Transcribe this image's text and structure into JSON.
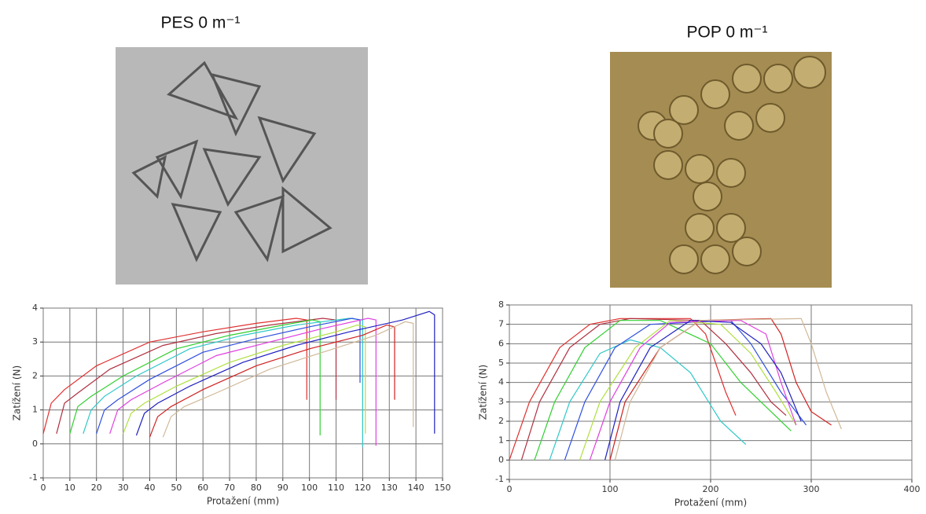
{
  "chart_data": [
    {
      "type": "line",
      "title": "PES 0 m⁻¹",
      "x_label": "Protažení (mm)",
      "y_label": "Zatížení (N)",
      "xlim": [
        0,
        150
      ],
      "xticks": [
        0,
        10,
        20,
        30,
        40,
        50,
        60,
        70,
        80,
        90,
        100,
        110,
        120,
        130,
        140,
        150
      ],
      "ylim": [
        -1,
        4
      ],
      "yticks": [
        -1,
        0,
        1,
        2,
        3,
        4
      ],
      "grid": true,
      "series": [
        {
          "color": "#e03030",
          "x": [
            0,
            3,
            8,
            20,
            40,
            60,
            80,
            95,
            99,
            99
          ],
          "values": [
            0.3,
            1.2,
            1.6,
            2.3,
            3.0,
            3.3,
            3.55,
            3.7,
            3.65,
            1.3
          ]
        },
        {
          "color": "#b03040",
          "x": [
            5,
            8,
            13,
            25,
            45,
            65,
            85,
            105,
            110,
            110
          ],
          "values": [
            0.3,
            1.2,
            1.5,
            2.2,
            2.9,
            3.25,
            3.5,
            3.7,
            3.65,
            1.3
          ]
        },
        {
          "color": "#30d030",
          "x": [
            10,
            13,
            18,
            30,
            50,
            70,
            90,
            101,
            104,
            104
          ],
          "values": [
            0.3,
            1.1,
            1.4,
            2.0,
            2.8,
            3.2,
            3.5,
            3.65,
            3.6,
            0.25
          ]
        },
        {
          "color": "#30c8c8",
          "x": [
            15,
            18,
            23,
            35,
            55,
            75,
            95,
            115,
            120,
            120
          ],
          "values": [
            0.3,
            1.0,
            1.4,
            2.0,
            2.8,
            3.2,
            3.5,
            3.7,
            3.65,
            -0.1
          ]
        },
        {
          "color": "#3050e0",
          "x": [
            20,
            23,
            28,
            40,
            60,
            80,
            100,
            116,
            119,
            119
          ],
          "values": [
            0.3,
            1.0,
            1.3,
            1.9,
            2.7,
            3.1,
            3.45,
            3.7,
            3.65,
            1.8
          ]
        },
        {
          "color": "#e040e0",
          "x": [
            25,
            28,
            33,
            45,
            65,
            85,
            105,
            122,
            125,
            125
          ],
          "values": [
            0.3,
            1.0,
            1.3,
            1.8,
            2.6,
            3.0,
            3.4,
            3.7,
            3.65,
            -0.05
          ]
        },
        {
          "color": "#b0e040",
          "x": [
            30,
            33,
            38,
            50,
            70,
            90,
            110,
            118,
            121,
            121
          ],
          "values": [
            0.3,
            0.9,
            1.2,
            1.7,
            2.4,
            2.9,
            3.3,
            3.5,
            3.45,
            0.3
          ]
        },
        {
          "color": "#2020c0",
          "x": [
            35,
            38,
            43,
            55,
            75,
            95,
            115,
            135,
            145,
            147,
            147
          ],
          "values": [
            0.25,
            0.9,
            1.2,
            1.7,
            2.4,
            2.9,
            3.3,
            3.65,
            3.9,
            3.8,
            0.3
          ]
        },
        {
          "color": "#d02020",
          "x": [
            40,
            43,
            48,
            60,
            80,
            100,
            120,
            129,
            132,
            132
          ],
          "values": [
            0.2,
            0.8,
            1.1,
            1.6,
            2.3,
            2.8,
            3.2,
            3.5,
            3.45,
            1.3
          ]
        },
        {
          "color": "#d0b898",
          "x": [
            45,
            48,
            53,
            65,
            85,
            105,
            125,
            136,
            139,
            139
          ],
          "values": [
            0.2,
            0.8,
            1.1,
            1.5,
            2.2,
            2.7,
            3.2,
            3.6,
            3.55,
            0.5
          ]
        }
      ]
    },
    {
      "type": "line",
      "title": "POP 0 m⁻¹",
      "x_label": "Protažení (mm)",
      "y_label": "Zatížení (N)",
      "xlim": [
        0,
        400
      ],
      "xticks": [
        0,
        100,
        200,
        300,
        400
      ],
      "ylim": [
        -1,
        8
      ],
      "yticks": [
        -1,
        0,
        1,
        2,
        3,
        4,
        5,
        6,
        7,
        8
      ],
      "grid": true,
      "series": [
        {
          "color": "#e03030",
          "x": [
            0,
            20,
            50,
            80,
            110,
            180,
            195,
            205,
            215,
            225
          ],
          "values": [
            0,
            3,
            5.8,
            7,
            7.3,
            7.3,
            6.5,
            5,
            3.5,
            2.3
          ]
        },
        {
          "color": "#b03040",
          "x": [
            12,
            30,
            60,
            90,
            120,
            190,
            215,
            240,
            260,
            275
          ],
          "values": [
            0,
            3,
            5.8,
            7,
            7.3,
            7.2,
            6,
            4.5,
            3,
            2.3
          ]
        },
        {
          "color": "#30d030",
          "x": [
            25,
            45,
            75,
            110,
            150,
            200,
            230,
            260,
            280
          ],
          "values": [
            0,
            3,
            5.8,
            7.2,
            7.2,
            6,
            4,
            2.5,
            1.5
          ]
        },
        {
          "color": "#30c8c8",
          "x": [
            40,
            60,
            90,
            120,
            150,
            180,
            210,
            235
          ],
          "values": [
            0,
            3,
            5.5,
            6.2,
            5.8,
            4.5,
            2,
            0.8
          ]
        },
        {
          "color": "#3050e0",
          "x": [
            55,
            75,
            105,
            140,
            220,
            240,
            270,
            295
          ],
          "values": [
            0,
            3,
            5.8,
            7,
            7.2,
            6,
            3.5,
            1.8
          ]
        },
        {
          "color": "#b0e040",
          "x": [
            70,
            90,
            125,
            160,
            210,
            240,
            265,
            285
          ],
          "values": [
            0,
            3,
            5.8,
            7.2,
            7,
            5.5,
            3.5,
            1.8
          ]
        },
        {
          "color": "#e040e0",
          "x": [
            80,
            100,
            130,
            160,
            230,
            255,
            270,
            285
          ],
          "values": [
            0,
            3,
            5.8,
            7.1,
            7.2,
            6.5,
            4,
            1.8
          ]
        },
        {
          "color": "#2020c0",
          "x": [
            95,
            110,
            140,
            180,
            220,
            250,
            270,
            290
          ],
          "values": [
            0,
            3,
            5.8,
            7.2,
            7.1,
            6,
            4.5,
            2
          ]
        },
        {
          "color": "#d02020",
          "x": [
            100,
            115,
            150,
            190,
            260,
            270,
            285,
            300,
            320
          ],
          "values": [
            0,
            3,
            5.8,
            7.2,
            7.3,
            6.5,
            4,
            2.5,
            1.8
          ]
        },
        {
          "color": "#d0b898",
          "x": [
            105,
            120,
            150,
            190,
            290,
            300,
            315,
            330
          ],
          "values": [
            0,
            3,
            5.8,
            7.2,
            7.3,
            6,
            3.5,
            1.6
          ]
        }
      ]
    }
  ]
}
